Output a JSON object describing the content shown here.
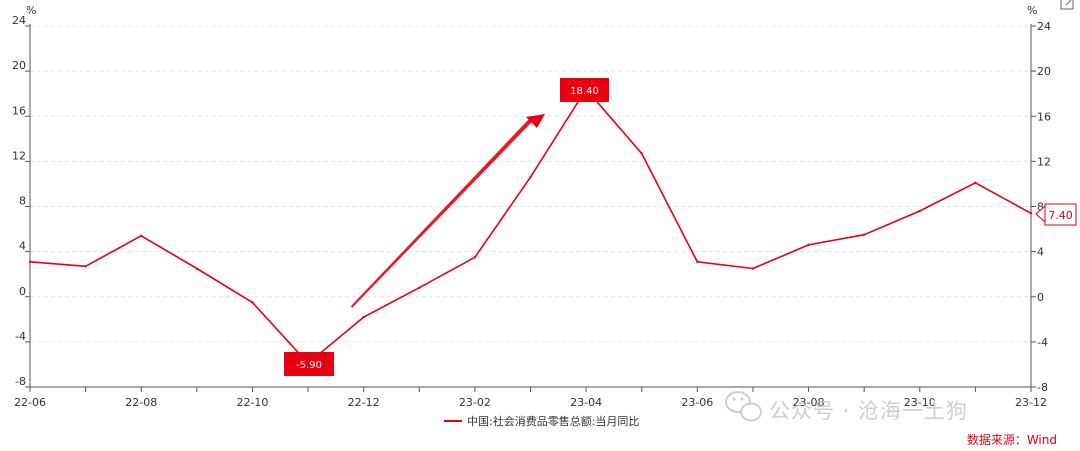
{
  "chart_data": {
    "type": "line",
    "unit_left": "%",
    "unit_right": "%",
    "x": [
      "22-06",
      "22-07",
      "22-08",
      "22-09",
      "22-10",
      "22-11",
      "22-12",
      "23-01",
      "23-02",
      "23-03",
      "23-04",
      "23-05",
      "23-06",
      "23-07",
      "23-08",
      "23-09",
      "23-10",
      "23-11",
      "23-12"
    ],
    "x_tick_labels": [
      "22-06",
      "22-08",
      "22-10",
      "22-12",
      "23-02",
      "23-04",
      "23-06",
      "23-08",
      "23-10",
      "23-12"
    ],
    "series": [
      {
        "name": "中国:社会消费品零售总额:当月同比",
        "color": "#e60012",
        "values": [
          3.1,
          2.7,
          5.4,
          2.5,
          -0.5,
          -5.9,
          -1.8,
          0.8,
          3.5,
          10.6,
          18.4,
          12.7,
          3.1,
          2.5,
          4.6,
          5.5,
          7.6,
          10.1,
          7.4
        ]
      }
    ],
    "ylim": [
      -8,
      24
    ],
    "yticks": [
      -8,
      -4,
      0,
      4,
      8,
      12,
      16,
      20,
      24
    ],
    "grid": true,
    "legend_position": "bottom",
    "annotations": {
      "min_label": "-5.90",
      "max_label": "18.40",
      "last_label": "7.40"
    }
  },
  "source_text": "数据来源：Wind",
  "watermark_text": "公众号 · 沧海一土狗",
  "icons": {
    "export": "export-icon",
    "wechat": "wechat-icon"
  }
}
